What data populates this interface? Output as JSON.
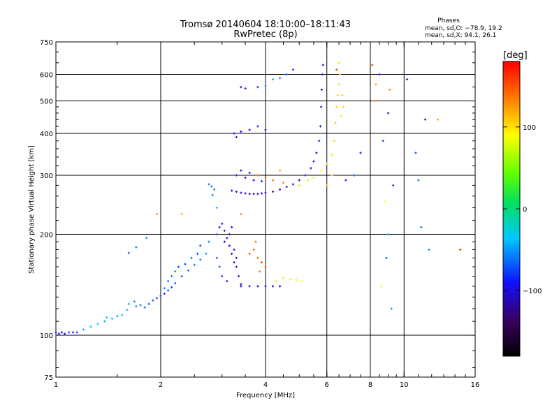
{
  "header": {
    "title_line1": "Tromsø 20140604 18:10:00–18:11:43",
    "title_line2": "RwPretec (8p)"
  },
  "phases": {
    "heading": "Phases",
    "line_o": "mean, sd,O: −78.9, 19.2",
    "line_x": "mean, sd,X:  94.1, 26.1"
  },
  "colorbar": {
    "unit": "[deg]",
    "ticks": [
      {
        "value": 100,
        "label": "100"
      },
      {
        "value": 0,
        "label": "0"
      },
      {
        "value": -100,
        "label": "−100"
      }
    ],
    "range": [
      -180,
      180
    ]
  },
  "chart_data": {
    "type": "scatter",
    "title": "Tromsø 20140604 18:10:00–18:11:43",
    "subtitle": "RwPretec (8p)",
    "xlabel": "Frequency [MHz]",
    "ylabel": "Stationary phase Virtual Height [km]",
    "xscale": "log",
    "yscale": "log",
    "xlim": [
      1,
      16
    ],
    "ylim": [
      75,
      750
    ],
    "xticks": [
      {
        "value": 1,
        "label": "1"
      },
      {
        "value": 2,
        "label": "2"
      },
      {
        "value": 4,
        "label": "4"
      },
      {
        "value": 6,
        "label": "6"
      },
      {
        "value": 8,
        "label": "8"
      },
      {
        "value": 10,
        "label": "10"
      },
      {
        "value": 16,
        "label": "16"
      }
    ],
    "yticks": [
      {
        "value": 75,
        "label": "75"
      },
      {
        "value": 100,
        "label": "100"
      },
      {
        "value": 200,
        "label": "200"
      },
      {
        "value": 300,
        "label": "300"
      },
      {
        "value": 400,
        "label": "400"
      },
      {
        "value": 500,
        "label": "500"
      },
      {
        "value": 600,
        "label": "600"
      },
      {
        "value": 750,
        "label": "750"
      }
    ],
    "grid": true,
    "grid_x": [
      2,
      4,
      6,
      8,
      10
    ],
    "grid_y": [
      100,
      200,
      300,
      400,
      500,
      600
    ],
    "color_encoding": "phase [deg], rainbow scale from -180 (black) to 180 (red)",
    "points": [
      [
        1.0,
        102,
        -90
      ],
      [
        1.02,
        101,
        -95
      ],
      [
        1.04,
        102,
        -90
      ],
      [
        1.06,
        101,
        -85
      ],
      [
        1.09,
        102,
        -80
      ],
      [
        1.12,
        102,
        -85
      ],
      [
        1.15,
        102,
        -80
      ],
      [
        1.2,
        104,
        -40
      ],
      [
        1.26,
        106,
        -40
      ],
      [
        1.32,
        108,
        -35
      ],
      [
        1.38,
        110,
        -45
      ],
      [
        1.4,
        113,
        -30
      ],
      [
        1.45,
        112,
        -40
      ],
      [
        1.5,
        114,
        -45
      ],
      [
        1.55,
        115,
        -30
      ],
      [
        1.6,
        119,
        -40
      ],
      [
        1.62,
        124,
        -45
      ],
      [
        1.68,
        126,
        -50
      ],
      [
        1.7,
        122,
        -55
      ],
      [
        1.75,
        123,
        -60
      ],
      [
        1.8,
        121,
        -60
      ],
      [
        1.85,
        124,
        -70
      ],
      [
        1.9,
        127,
        -70
      ],
      [
        1.95,
        129,
        -75
      ],
      [
        2.0,
        131,
        -75
      ],
      [
        2.05,
        133,
        -80
      ],
      [
        2.1,
        136,
        -75
      ],
      [
        2.15,
        139,
        -70
      ],
      [
        2.2,
        143,
        -75
      ],
      [
        2.3,
        150,
        -70
      ],
      [
        2.4,
        156,
        -60
      ],
      [
        2.5,
        162,
        -60
      ],
      [
        2.6,
        168,
        -55
      ],
      [
        2.7,
        175,
        -50
      ],
      [
        1.62,
        176,
        -70
      ],
      [
        1.7,
        183,
        -60
      ],
      [
        1.82,
        195,
        -50
      ],
      [
        1.95,
        230,
        130
      ],
      [
        2.05,
        138,
        -55
      ],
      [
        2.1,
        145,
        -65
      ],
      [
        2.15,
        150,
        -60
      ],
      [
        2.2,
        155,
        -55
      ],
      [
        2.25,
        160,
        -75
      ],
      [
        2.35,
        163,
        -80
      ],
      [
        2.45,
        170,
        -65
      ],
      [
        2.55,
        175,
        -70
      ],
      [
        2.6,
        185,
        -75
      ],
      [
        2.75,
        190,
        -60
      ],
      [
        2.9,
        240,
        -40
      ],
      [
        2.75,
        282,
        -60
      ],
      [
        2.8,
        278,
        -60
      ],
      [
        2.85,
        272,
        -50
      ],
      [
        2.82,
        262,
        -55
      ],
      [
        2.9,
        200,
        -80
      ],
      [
        2.95,
        210,
        -85
      ],
      [
        3.0,
        215,
        -90
      ],
      [
        3.05,
        205,
        -85
      ],
      [
        3.1,
        195,
        -95
      ],
      [
        3.15,
        185,
        -100
      ],
      [
        3.2,
        175,
        -110
      ],
      [
        3.25,
        165,
        -105
      ],
      [
        3.3,
        160,
        -115
      ],
      [
        3.35,
        150,
        -110
      ],
      [
        3.4,
        142,
        -100
      ],
      [
        3.1,
        145,
        -90
      ],
      [
        3.0,
        150,
        -80
      ],
      [
        2.95,
        160,
        -70
      ],
      [
        2.9,
        170,
        -75
      ],
      [
        3.05,
        190,
        -115
      ],
      [
        3.15,
        200,
        -120
      ],
      [
        3.2,
        210,
        -115
      ],
      [
        3.25,
        180,
        -100
      ],
      [
        3.3,
        170,
        -95
      ],
      [
        3.2,
        270,
        -100
      ],
      [
        3.3,
        268,
        -95
      ],
      [
        3.4,
        266,
        -100
      ],
      [
        3.5,
        265,
        -95
      ],
      [
        3.6,
        264,
        -100
      ],
      [
        3.7,
        264,
        -105
      ],
      [
        3.8,
        264,
        -100
      ],
      [
        3.9,
        265,
        -95
      ],
      [
        4.0,
        266,
        -100
      ],
      [
        4.2,
        268,
        -105
      ],
      [
        4.4,
        272,
        -100
      ],
      [
        4.6,
        277,
        -105
      ],
      [
        4.8,
        282,
        -100
      ],
      [
        5.0,
        290,
        -105
      ],
      [
        5.2,
        300,
        -100
      ],
      [
        5.4,
        315,
        -105
      ],
      [
        5.5,
        330,
        -100
      ],
      [
        5.6,
        350,
        -105
      ],
      [
        5.7,
        380,
        -100
      ],
      [
        5.75,
        420,
        -110
      ],
      [
        5.78,
        480,
        -105
      ],
      [
        5.8,
        540,
        -100
      ],
      [
        5.82,
        600,
        -105
      ],
      [
        5.85,
        640,
        -100
      ],
      [
        3.3,
        300,
        -90
      ],
      [
        3.5,
        295,
        -95
      ],
      [
        3.7,
        290,
        -90
      ],
      [
        3.9,
        288,
        -85
      ],
      [
        3.6,
        305,
        -100
      ],
      [
        3.4,
        310,
        -95
      ],
      [
        3.8,
        300,
        150
      ],
      [
        4.0,
        295,
        145
      ],
      [
        4.2,
        290,
        140
      ],
      [
        4.5,
        285,
        130
      ],
      [
        4.4,
        310,
        120
      ],
      [
        3.25,
        400,
        -90
      ],
      [
        3.4,
        405,
        -95
      ],
      [
        3.6,
        410,
        -90
      ],
      [
        3.8,
        420,
        -85
      ],
      [
        4.0,
        410,
        -90
      ],
      [
        3.3,
        390,
        -100
      ],
      [
        3.5,
        545,
        -85
      ],
      [
        3.8,
        550,
        -80
      ],
      [
        4.0,
        555,
        -50
      ],
      [
        4.2,
        580,
        -40
      ],
      [
        4.4,
        585,
        -55
      ],
      [
        4.6,
        600,
        -70
      ],
      [
        4.8,
        620,
        -80
      ],
      [
        3.4,
        550,
        -90
      ],
      [
        3.4,
        140,
        -110
      ],
      [
        3.6,
        140,
        -105
      ],
      [
        3.8,
        140,
        -115
      ],
      [
        4.0,
        140,
        -110
      ],
      [
        4.2,
        140,
        -105
      ],
      [
        4.4,
        140,
        -110
      ],
      [
        3.6,
        175,
        150
      ],
      [
        3.7,
        180,
        145
      ],
      [
        3.8,
        170,
        140
      ],
      [
        3.9,
        165,
        155
      ],
      [
        4.0,
        160,
        150
      ],
      [
        3.75,
        190,
        140
      ],
      [
        3.85,
        155,
        135
      ],
      [
        4.3,
        145,
        80
      ],
      [
        4.5,
        148,
        75
      ],
      [
        4.7,
        147,
        80
      ],
      [
        4.9,
        146,
        78
      ],
      [
        5.1,
        145,
        85
      ],
      [
        5.0,
        280,
        70
      ],
      [
        5.3,
        290,
        75
      ],
      [
        5.5,
        295,
        80
      ],
      [
        5.8,
        310,
        90
      ],
      [
        6.0,
        325,
        95
      ],
      [
        6.2,
        345,
        100
      ],
      [
        6.3,
        380,
        105
      ],
      [
        6.35,
        430,
        110
      ],
      [
        6.4,
        480,
        105
      ],
      [
        6.45,
        520,
        100
      ],
      [
        6.5,
        560,
        105
      ],
      [
        6.55,
        600,
        110
      ],
      [
        6.5,
        650,
        100
      ],
      [
        6.0,
        280,
        110
      ],
      [
        6.2,
        300,
        105
      ],
      [
        6.6,
        450,
        100
      ],
      [
        6.65,
        520,
        105
      ],
      [
        6.7,
        480,
        110
      ],
      [
        6.4,
        620,
        150
      ],
      [
        8.1,
        640,
        160
      ],
      [
        8.2,
        500,
        140
      ],
      [
        8.3,
        560,
        120
      ],
      [
        8.5,
        600,
        -90
      ],
      [
        8.7,
        380,
        -80
      ],
      [
        8.8,
        250,
        90
      ],
      [
        9.0,
        460,
        -100
      ],
      [
        9.1,
        540,
        130
      ],
      [
        9.3,
        280,
        -80
      ],
      [
        9.0,
        200,
        -60
      ],
      [
        8.9,
        170,
        -70
      ],
      [
        8.6,
        140,
        90
      ],
      [
        9.2,
        120,
        -50
      ],
      [
        10.2,
        580,
        -100
      ],
      [
        10.8,
        350,
        -70
      ],
      [
        11.0,
        290,
        -60
      ],
      [
        11.2,
        210,
        -60
      ],
      [
        11.5,
        440,
        -110
      ],
      [
        11.8,
        180,
        -50
      ],
      [
        12.5,
        440,
        120
      ],
      [
        14.5,
        180,
        170
      ],
      [
        6.8,
        290,
        -80
      ],
      [
        7.2,
        300,
        -70
      ],
      [
        7.5,
        350,
        -85
      ],
      [
        3.4,
        230,
        130
      ],
      [
        2.3,
        230,
        120
      ]
    ]
  }
}
